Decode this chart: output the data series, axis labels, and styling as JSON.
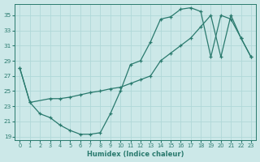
{
  "xlabel": "Humidex (Indice chaleur)",
  "bg_color": "#cce8e8",
  "line_color": "#2a7a6e",
  "grid_color": "#b0d8d8",
  "xlim": [
    -0.5,
    23.5
  ],
  "ylim": [
    18.5,
    36.5
  ],
  "yticks": [
    19,
    21,
    23,
    25,
    27,
    29,
    31,
    33,
    35
  ],
  "xticks": [
    0,
    1,
    2,
    3,
    4,
    5,
    6,
    7,
    8,
    9,
    10,
    11,
    12,
    13,
    14,
    15,
    16,
    17,
    18,
    19,
    20,
    21,
    22,
    23
  ],
  "line1_x": [
    0,
    1,
    2,
    3,
    4,
    5,
    6,
    7,
    8,
    9,
    10,
    11,
    12,
    13,
    14,
    15,
    16,
    17,
    18,
    19,
    20,
    21,
    22,
    23
  ],
  "line1_y": [
    28.0,
    23.5,
    22.0,
    21.5,
    20.5,
    19.8,
    19.3,
    19.3,
    19.5,
    22.0,
    25.0,
    28.5,
    29.0,
    31.5,
    34.5,
    34.8,
    35.8,
    36.0,
    35.5,
    29.5,
    35.0,
    34.5,
    32.0,
    29.5
  ],
  "line2_x": [
    0,
    1,
    3,
    4,
    5,
    6,
    7,
    8,
    9,
    10,
    11,
    12,
    13,
    14,
    15,
    16,
    17,
    18,
    19,
    20,
    21,
    22,
    23
  ],
  "line2_y": [
    28.0,
    23.5,
    24.0,
    24.0,
    24.2,
    24.5,
    24.8,
    25.0,
    25.3,
    25.5,
    26.0,
    26.5,
    27.0,
    29.0,
    30.0,
    31.0,
    32.0,
    33.5,
    35.0,
    29.5,
    35.0,
    32.0,
    29.5
  ]
}
